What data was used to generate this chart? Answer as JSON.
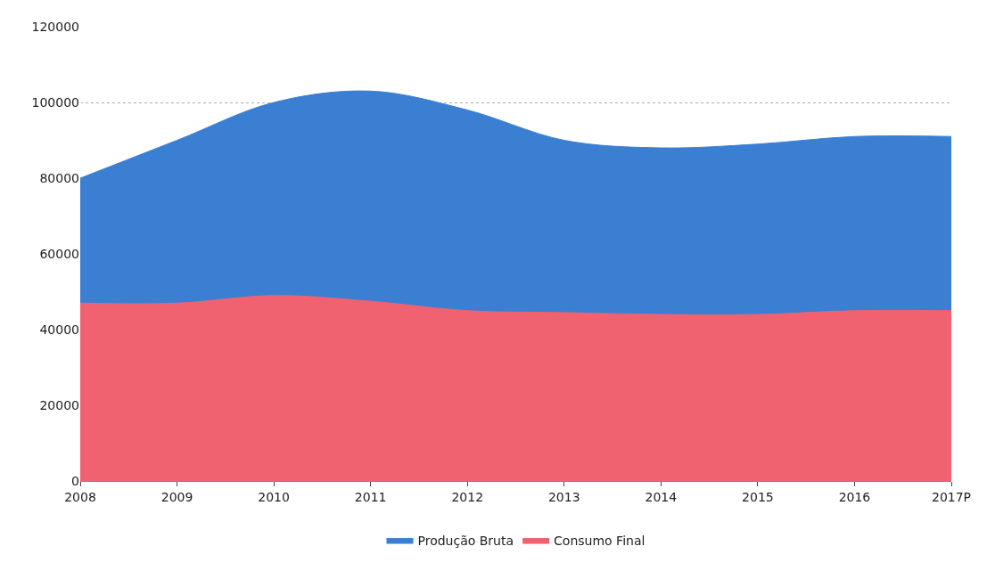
{
  "chart_data": {
    "type": "area",
    "categories": [
      "2008",
      "2009",
      "2010",
      "2011",
      "2012",
      "2013",
      "2014",
      "2015",
      "2016",
      "2017P"
    ],
    "series": [
      {
        "name": "Produção Bruta",
        "color": "#3b7fd2",
        "values": [
          80000,
          90000,
          100000,
          103000,
          98000,
          90000,
          88000,
          89000,
          91000,
          91000
        ]
      },
      {
        "name": "Consumo Final",
        "color": "#f0626f",
        "values": [
          47000,
          47000,
          49000,
          47500,
          45000,
          44500,
          44000,
          44000,
          45000,
          45000
        ]
      }
    ],
    "ylim": [
      0,
      120000
    ],
    "yticks": [
      0,
      20000,
      40000,
      60000,
      80000,
      100000,
      120000
    ],
    "grid": "y",
    "legend": "bottom"
  }
}
